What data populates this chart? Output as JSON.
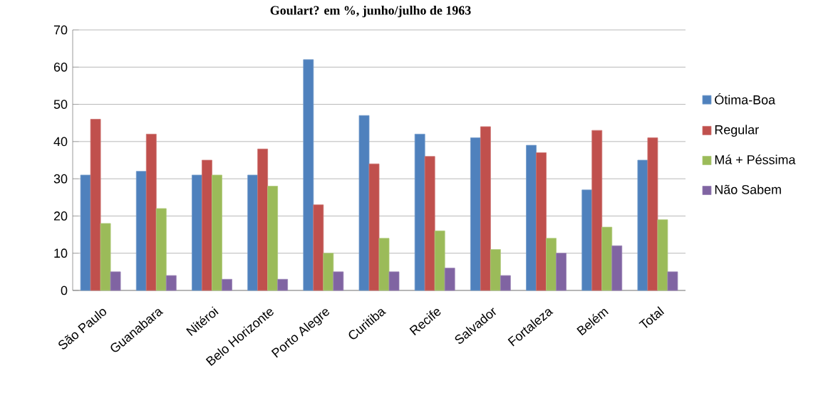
{
  "chart_data": {
    "type": "bar",
    "title": "Goulart?  em %,  junho/julho de 1963",
    "categories": [
      "São Paulo",
      "Guanabara",
      "Nitéroi",
      "Belo Horizonte",
      "Porto Alegre",
      "Curitiba",
      "Recife",
      "Salvador",
      "Fortaleza",
      "Belém",
      "Total"
    ],
    "series": [
      {
        "name": "Ótima-Boa",
        "color": "#4f81bd",
        "values": [
          31,
          32,
          31,
          31,
          62,
          47,
          42,
          41,
          39,
          27,
          35
        ]
      },
      {
        "name": "Regular",
        "color": "#c0504d",
        "values": [
          46,
          42,
          35,
          38,
          23,
          34,
          36,
          44,
          37,
          43,
          41
        ]
      },
      {
        "name": "Má + Péssima",
        "color": "#9bbb59",
        "values": [
          18,
          22,
          31,
          28,
          10,
          14,
          16,
          11,
          14,
          17,
          19
        ]
      },
      {
        "name": "Não Sabem",
        "color": "#8064a2",
        "values": [
          5,
          4,
          3,
          3,
          5,
          5,
          6,
          4,
          10,
          12,
          5
        ]
      }
    ],
    "ylim": [
      0,
      70
    ],
    "yticks": [
      0,
      10,
      20,
      30,
      40,
      50,
      60,
      70
    ],
    "grid": "y",
    "legend": "right"
  }
}
